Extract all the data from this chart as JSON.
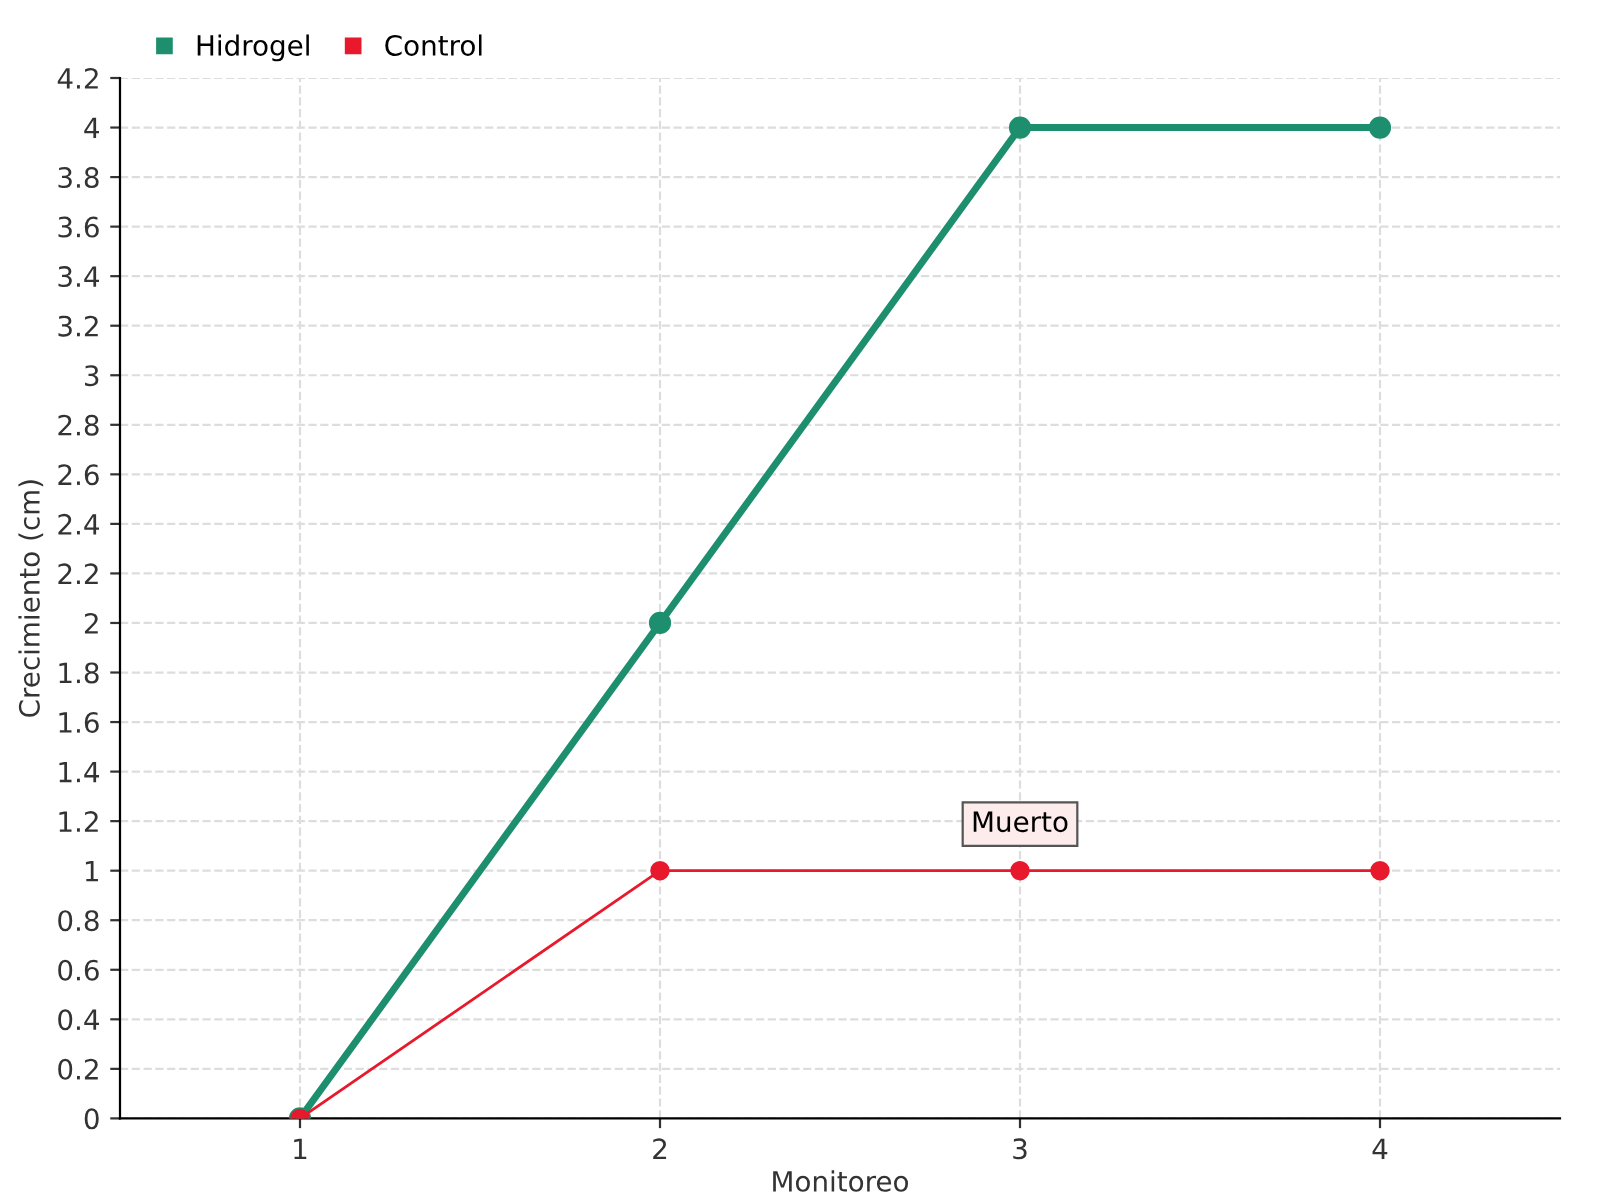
{
  "chart_data": {
    "type": "line",
    "xlabel": "Monitoreo",
    "ylabel": "Crecimiento (cm)",
    "x": [
      1,
      2,
      3,
      4
    ],
    "series": [
      {
        "name": "Hidrogel",
        "color": "#1e8f6e",
        "values": [
          0,
          2,
          4,
          4
        ]
      },
      {
        "name": "Control",
        "color": "#e8192c",
        "values": [
          0,
          1,
          1,
          1
        ]
      }
    ],
    "xlim": [
      0.5,
      4.5
    ],
    "xticks": [
      1,
      2,
      3,
      4
    ],
    "ylim": [
      0,
      4.2
    ],
    "yticks": [
      0,
      0.2,
      0.4,
      0.6,
      0.8,
      1,
      1.2,
      1.4,
      1.6,
      1.8,
      2,
      2.2,
      2.4,
      2.6,
      2.8,
      3,
      3.2,
      3.4,
      3.6,
      3.8,
      4,
      4.2
    ],
    "grid": true,
    "legend": "top left",
    "marker": "circle",
    "line_style": "solid",
    "annotations": [
      {
        "text": "Muerto",
        "x": 3,
        "y": 1
      }
    ]
  }
}
